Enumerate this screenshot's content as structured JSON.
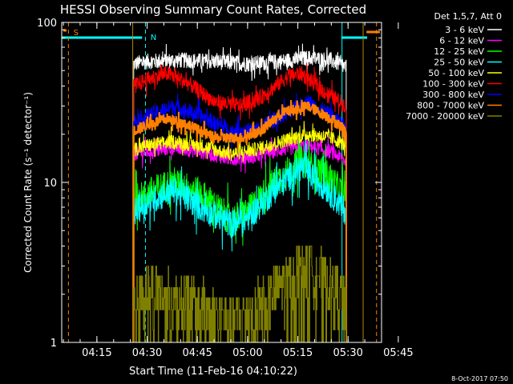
{
  "chart_data": {
    "type": "line",
    "title": "HESSI Observing Summary Count Rates, Corrected",
    "xlabel": "Start Time (11-Feb-16 04:10:22)",
    "ylabel": "Corrected Count Rate (s⁻¹ detector⁻¹)",
    "yscale": "log",
    "ylim": [
      1,
      100
    ],
    "xlim_minutes": [
      4.5,
      100
    ],
    "x_ticks": [
      {
        "label": "04:15",
        "minutes": 15
      },
      {
        "label": "04:30",
        "minutes": 30
      },
      {
        "label": "04:45",
        "minutes": 45
      },
      {
        "label": "05:00",
        "minutes": 60
      },
      {
        "label": "05:15",
        "minutes": 75
      },
      {
        "label": "05:30",
        "minutes": 90
      },
      {
        "label": "05:45",
        "minutes": 105
      }
    ],
    "y_ticks": [
      {
        "label": "1",
        "value": 1
      },
      {
        "label": "10",
        "value": 10
      },
      {
        "label": "100",
        "value": 100
      }
    ],
    "legend_title": "Det 1,5,7, Att 0",
    "legend_position": "right",
    "series": [
      {
        "name": "3 - 6 keV",
        "color": "#ffffff",
        "x": [
          26,
          30,
          40,
          50,
          60,
          70,
          78,
          85,
          89.5
        ],
        "y": [
          55,
          57,
          58,
          57,
          55,
          57,
          60,
          58,
          52
        ]
      },
      {
        "name": "6 - 12 keV",
        "color": "#ff00ff",
        "x": [
          26,
          30,
          38,
          46,
          55,
          62,
          70,
          78,
          85,
          89.5
        ],
        "y": [
          15,
          15.5,
          16.5,
          15.5,
          14,
          14.5,
          16,
          17,
          15.5,
          13.5
        ]
      },
      {
        "name": "12 - 25 keV",
        "color": "#00ff00",
        "x": [
          26,
          30,
          38,
          46,
          55,
          60,
          68,
          76,
          84,
          89.5
        ],
        "y": [
          7.5,
          8.5,
          10,
          8.5,
          5.8,
          6.5,
          10,
          13.5,
          11,
          8
        ]
      },
      {
        "name": "25 - 50 keV",
        "color": "#00ffff",
        "x": [
          26,
          30,
          38,
          46,
          55,
          60,
          68,
          76,
          84,
          89.5
        ],
        "y": [
          6.5,
          7.5,
          9,
          7,
          5.5,
          6,
          9,
          12.5,
          9,
          6.5
        ]
      },
      {
        "name": "50 - 100 keV",
        "color": "#ffff00",
        "x": [
          26,
          30,
          38,
          46,
          55,
          62,
          70,
          78,
          85,
          89.5
        ],
        "y": [
          16,
          17,
          18,
          17,
          15,
          16,
          18,
          20,
          19,
          17
        ]
      },
      {
        "name": "100 - 300 keV",
        "color": "#ff0000",
        "x": [
          26,
          30,
          36,
          42,
          50,
          58,
          64,
          72,
          76,
          82,
          89.5
        ],
        "y": [
          40,
          44,
          48,
          42,
          32,
          30,
          34,
          46,
          48,
          38,
          30
        ]
      },
      {
        "name": "300 - 800 keV",
        "color": "#0000ff",
        "x": [
          26,
          30,
          38,
          46,
          55,
          62,
          70,
          78,
          85,
          89.5
        ],
        "y": [
          24,
          26,
          30,
          26,
          21,
          21,
          26,
          32,
          26,
          22
        ]
      },
      {
        "name": "800 - 7000 keV",
        "color": "#ff7f00",
        "x": [
          26,
          30,
          36,
          42,
          50,
          58,
          64,
          70,
          78,
          85,
          89.5
        ],
        "y": [
          21,
          23,
          25,
          23,
          19,
          19,
          21,
          27,
          30,
          25,
          21
        ]
      },
      {
        "name": "7000 - 20000 keV",
        "color": "#808000",
        "x": [
          26,
          30,
          38,
          46,
          55,
          62,
          70,
          78,
          85,
          89.5
        ],
        "y": [
          1.7,
          2.2,
          1.9,
          1.7,
          1.3,
          1.6,
          2.2,
          3,
          2.2,
          1.8
        ]
      }
    ],
    "markers": [
      {
        "label": "S",
        "color": "#ff7f00"
      },
      {
        "label": "N",
        "color": "#00ffff"
      }
    ],
    "footer": "8-Oct-2017 07:50"
  }
}
